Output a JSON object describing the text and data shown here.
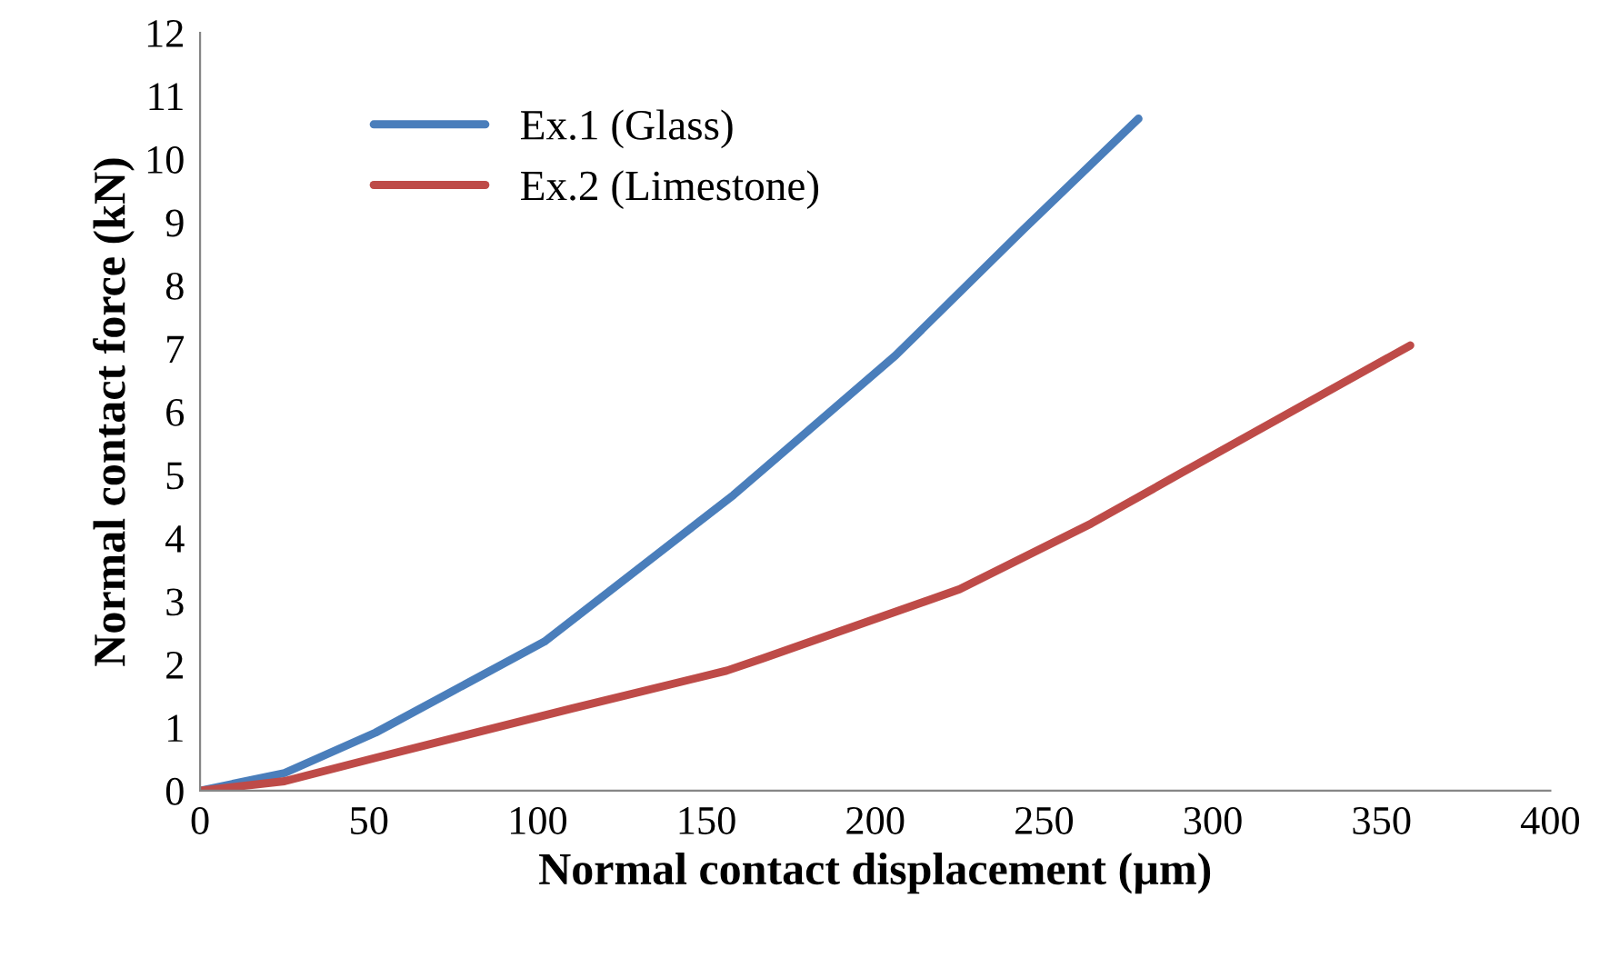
{
  "chart_data": {
    "type": "line",
    "xlabel": "Normal contact displacement (µm)",
    "ylabel": "Normal contact force (kN)",
    "xlim": [
      0,
      400
    ],
    "xticks": [
      0,
      50,
      100,
      150,
      200,
      250,
      300,
      350,
      400
    ],
    "ylim": [
      0,
      12
    ],
    "yticks": [
      0,
      1,
      2,
      3,
      4,
      5,
      6,
      7,
      8,
      9,
      10,
      11,
      12
    ],
    "grid": false,
    "legend": "top left",
    "marker": "none",
    "line_style": "solid",
    "series": [
      {
        "name": "Ex.1 (Glass)",
        "color": "#4a7ebb",
        "x": [
          0,
          25,
          52,
          102,
          158,
          206,
          244,
          278
        ],
        "values": [
          0,
          0.28,
          0.92,
          2.36,
          4.68,
          6.89,
          8.89,
          10.64
        ]
      },
      {
        "name": "Ex.2 (Limestone)",
        "color": "#be4b48",
        "x": [
          0,
          25,
          52,
          110,
          156,
          167,
          225,
          264,
          291,
          358.5
        ],
        "values": [
          0,
          0.15,
          0.52,
          1.3,
          1.9,
          2.1,
          3.19,
          4.23,
          5.04,
          7.05
        ]
      }
    ]
  }
}
